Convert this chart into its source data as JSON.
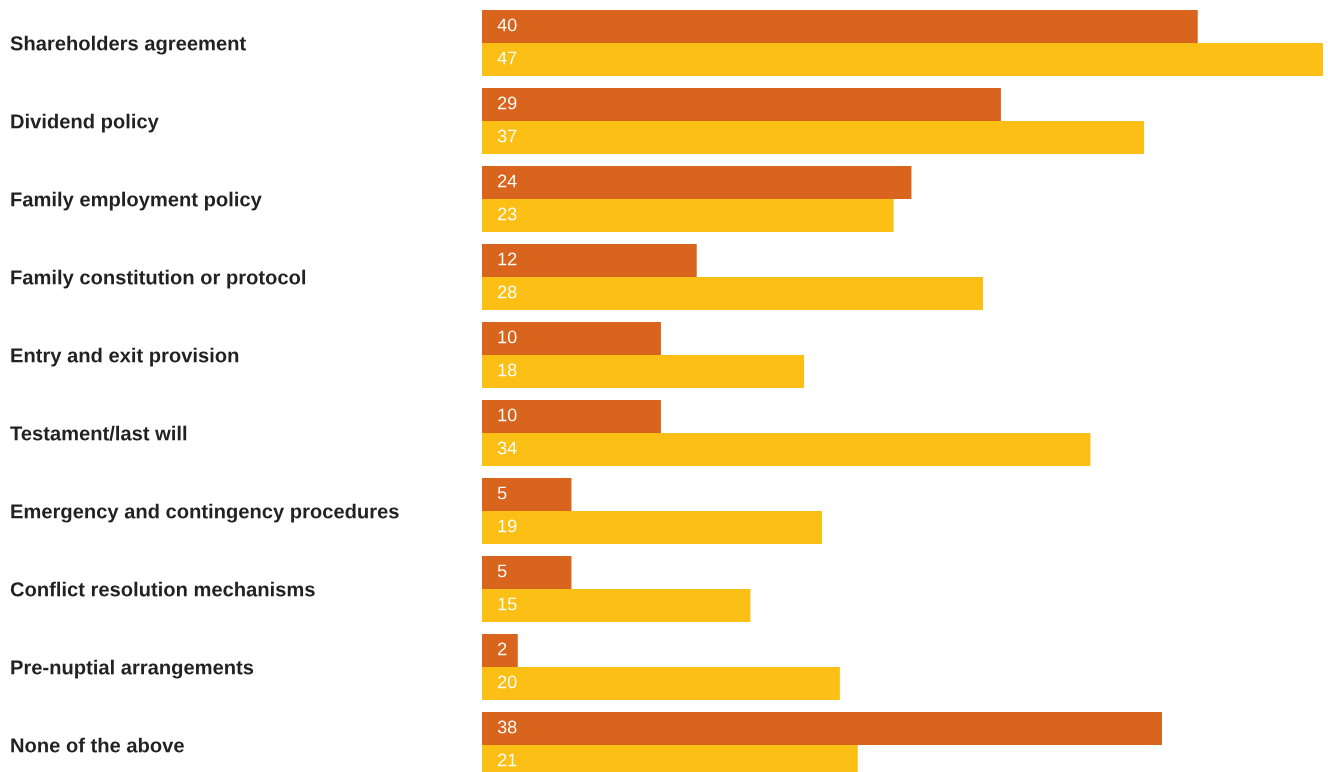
{
  "chart_data": {
    "type": "bar",
    "orientation": "horizontal",
    "data_labels": true,
    "categories": [
      "Shareholders agreement",
      "Dividend policy",
      "Family employment policy",
      "Family constitution or protocol",
      "Entry and exit provision",
      "Testament/last will",
      "Emergency and contingency procedures",
      "Conflict resolution mechanisms",
      "Pre-nuptial arrangements",
      "None of the above"
    ],
    "series": [
      {
        "color": "#d9641e",
        "values": [
          40,
          29,
          24,
          12,
          10,
          10,
          5,
          5,
          2,
          38
        ]
      },
      {
        "color": "#fbbf15",
        "values": [
          47,
          37,
          23,
          28,
          18,
          34,
          19,
          15,
          20,
          21
        ]
      }
    ]
  }
}
